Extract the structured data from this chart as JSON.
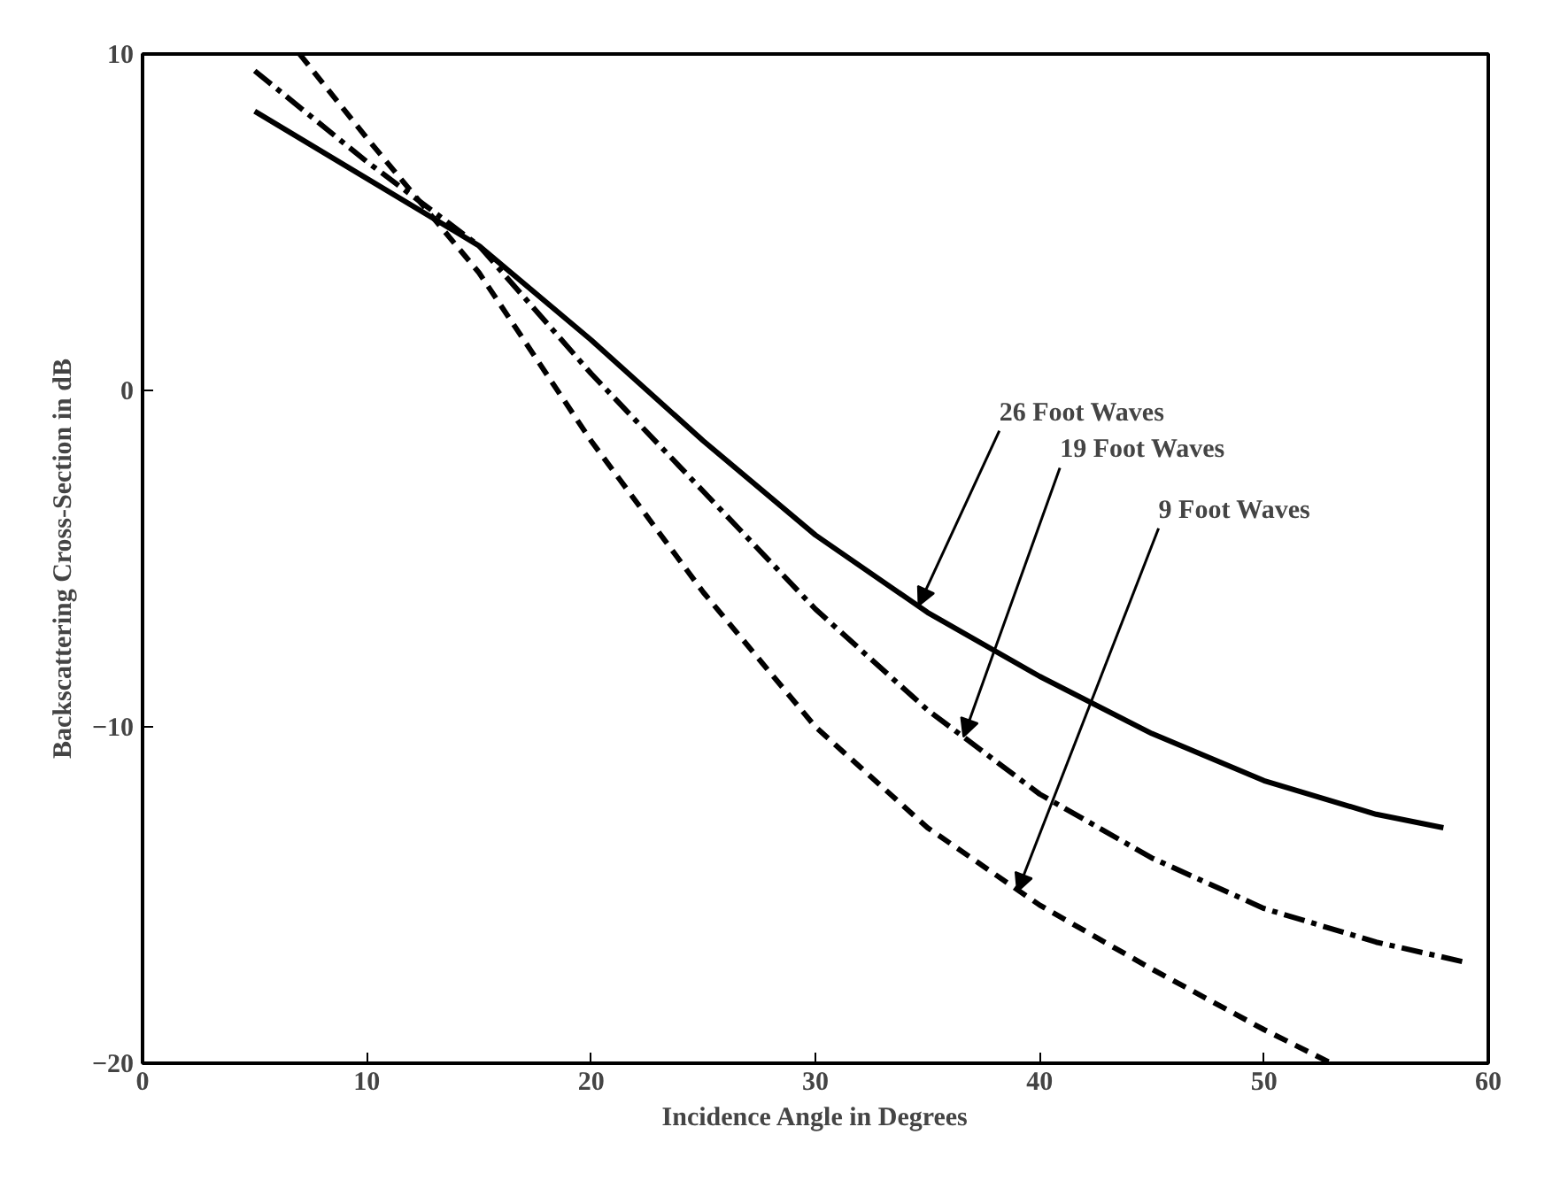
{
  "chart_data": {
    "type": "line",
    "xlabel": "Incidence Angle in Degrees",
    "ylabel": "Backscattering Cross-Section in dB",
    "xlim": [
      0,
      60
    ],
    "ylim": [
      -20,
      10
    ],
    "xticks": [
      0,
      10,
      20,
      30,
      40,
      50,
      60
    ],
    "yticks": [
      -20,
      -10,
      0,
      10
    ],
    "grid": false,
    "series": [
      {
        "x": [
          5,
          10,
          15,
          20,
          25,
          30,
          35,
          40,
          45,
          50,
          55,
          58
        ],
        "values": [
          8.3,
          6.3,
          4.3,
          1.5,
          -1.5,
          -4.3,
          -6.6,
          -8.5,
          -10.2,
          -11.6,
          -12.6,
          -13.0
        ],
        "color": "#000000",
        "line_style": "solid"
      },
      {
        "x": [
          5,
          10,
          15,
          20,
          25,
          30,
          35,
          40,
          45,
          50,
          55,
          59
        ],
        "values": [
          9.5,
          6.8,
          4.3,
          0.5,
          -3.0,
          -6.5,
          -9.5,
          -12.0,
          -13.9,
          -15.4,
          -16.4,
          -17.0
        ],
        "color": "#000000",
        "line_style": "dashdot"
      },
      {
        "x": [
          7,
          10,
          15,
          20,
          25,
          30,
          35,
          40,
          45,
          50,
          53
        ],
        "values": [
          10,
          7.5,
          3.5,
          -1.5,
          -6.0,
          -10.0,
          -13.0,
          -15.3,
          -17.2,
          -19.0,
          -20.0
        ],
        "color": "#000000",
        "line_style": "dashed"
      }
    ],
    "annotations": [
      {
        "text": "26 Foot Waves",
        "x": 34.6,
        "y": -6.4
      },
      {
        "text": "19 Foot Waves",
        "x": 36.6,
        "y": -10.3
      },
      {
        "text": "9 Foot Waves",
        "x": 39,
        "y": -14.9
      }
    ]
  }
}
